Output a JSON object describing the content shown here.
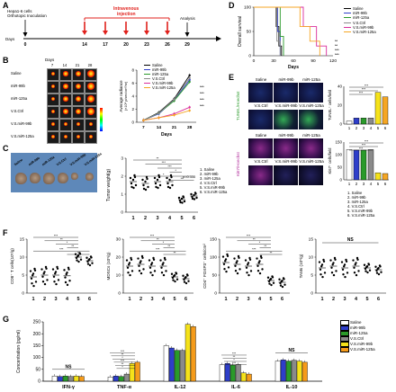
{
  "panels": {
    "A": "A",
    "B": "B",
    "C": "C",
    "D": "D",
    "E": "E",
    "F": "F",
    "G": "G"
  },
  "panelA": {
    "start_label": "Hepa1-6 cells\nOrthotopic Inoculation",
    "start_label_line1": "Hepa1-6 cells",
    "start_label_line2": "Orthotopic Inoculation",
    "injection_label_line1": "Intravenous",
    "injection_label_line2": "injection",
    "end_label": "Analysis",
    "days_label": "Days",
    "day_ticks": [
      "0",
      "14",
      "17",
      "20",
      "23",
      "26",
      "29"
    ],
    "arrow_color": "#e0211c"
  },
  "panelB": {
    "days_header": "Days",
    "day_cols": [
      "7",
      "14",
      "21",
      "28"
    ],
    "row_labels": [
      "Saline",
      "miR-99b",
      "miR-125a",
      "V.S.Ctrl",
      "V.S.miR-99b",
      "V.S.miR-125a"
    ],
    "legend_names": [
      "Saline",
      "miR-99b",
      "miR-125a",
      "V.S.Ctrl",
      "V.S.miR-99b",
      "V.S.miR-125a"
    ],
    "ylabel": "Average radiance",
    "ylabel2": "(×10⁶ p/sec/cm²/sr)",
    "yticks": [
      "0",
      "2",
      "4",
      "6",
      "8"
    ],
    "xlabel": "Days",
    "xticks": [
      "7",
      "14",
      "21",
      "28"
    ],
    "sig": [
      "***",
      "***",
      "***",
      "***"
    ]
  },
  "panelC": {
    "legend": [
      "1. Saline",
      "2. miR-99b",
      "3. miR-125a",
      "4. V.S.Ctrl",
      "5. V.S.miR-99b",
      "6. V.S.miR-125a"
    ],
    "tumor_labels": [
      "Saline",
      "miR-99b",
      "miR-125a",
      "V.S.Ctrl",
      "V.S.miR-99b",
      "V.S.miR-125a"
    ],
    "ylabel": "Tumor weight(g)",
    "yticks": [
      "0",
      "1",
      "2",
      "3"
    ],
    "xticks": [
      "1",
      "2",
      "3",
      "4",
      "5",
      "6"
    ],
    "pval": "p=0.110",
    "sig": [
      "**",
      "***",
      "***",
      "*",
      "*",
      "**"
    ]
  },
  "panelD": {
    "ylabel": "Overall survival",
    "xlabel": "Days",
    "yticks": [
      "0",
      "50",
      "100"
    ],
    "xticks": [
      "0",
      "30",
      "60",
      "90",
      "120"
    ],
    "legend": [
      "Saline",
      "miR-99b",
      "miR-125a",
      "V.S.Ctrl",
      "V.S.miR-99b",
      "V.S.miR-125a"
    ],
    "sig": [
      "**",
      "**",
      "***",
      "***"
    ]
  },
  "panelE": {
    "col_headers": [
      "Saline",
      "miR-99b",
      "miR-125a"
    ],
    "row_headers": [
      "V.S.Ctrl",
      "V.S.miR-99b",
      "V.S.miR-125a"
    ],
    "side_label_top": "TUNEL/Hoechst",
    "side_label_bottom": "Ki67/Hoechst",
    "top_ylabel": "TUNEL⁺ cells/field",
    "bottom_ylabel": "Ki67⁺ cells/field",
    "top_yticks": [
      "0",
      "20",
      "40"
    ],
    "bottom_yticks": [
      "0",
      "50",
      "100",
      "150"
    ],
    "xticks": [
      "1",
      "2",
      "3",
      "4",
      "5",
      "6"
    ],
    "legend": [
      "1. Saline",
      "2. miR-99b",
      "3. miR-125a",
      "4. V.S.Ctrl",
      "5. V.S.miR-99b",
      "6. V.S.miR-125a"
    ],
    "sig": [
      "***",
      "***",
      "***"
    ]
  },
  "panelF": {
    "plots": [
      {
        "ylabel": "CD8⁺ T cells(10⁵/g)",
        "yticks": [
          "0",
          "5",
          "10",
          "15"
        ]
      },
      {
        "ylabel": "MDSCs (10⁵/g)",
        "yticks": [
          "0",
          "10",
          "20",
          "30"
        ]
      },
      {
        "ylabel": "CD4⁺ FOXP3⁺ cells/cm²",
        "yticks": [
          "0",
          "50",
          "100",
          "150"
        ]
      },
      {
        "ylabel": "TAMs (10⁵/g)",
        "yticks": [
          "0",
          "5",
          "10",
          "15"
        ],
        "ns": "NS"
      }
    ],
    "xticks": [
      "1",
      "2",
      "3",
      "4",
      "5",
      "6"
    ],
    "sig": [
      "***",
      "**",
      "*",
      "**"
    ]
  },
  "panelG": {
    "ylabel": "Concentration (pg/ml)",
    "yticks": [
      "0",
      "50",
      "100",
      "150",
      "200",
      "250"
    ],
    "groups": [
      "IFN-γ",
      "TNF-α",
      "IL-12",
      "IL-6",
      "IL-10"
    ],
    "ns": "NS",
    "legend": [
      "Saline",
      "miR-99b",
      "miR-125a",
      "V.S.Ctrl",
      "V.S.miR-99b",
      "V.S.miR-125a"
    ],
    "colors": [
      "#ffffff",
      "#2e3ec9",
      "#2a9a2a",
      "#8a8a8a",
      "#f5e21a",
      "#f59b1a"
    ]
  },
  "colors": {
    "saline": "#000000",
    "mir99b": "#2e3ec9",
    "mir125a": "#2a9a2a",
    "vsctrl": "#8a8a8a",
    "vsmir99b": "#d92e9b",
    "vsmir125a": "#f5a623",
    "red": "#e0211c"
  },
  "chart_data": [
    {
      "type": "line",
      "title": "",
      "xlabel": "Days",
      "ylabel": "Average radiance",
      "x": [
        7,
        14,
        21,
        28
      ],
      "series": [
        {
          "name": "Saline",
          "values": [
            0.3,
            1.5,
            3.6,
            7.2
          ]
        },
        {
          "name": "miR-99b",
          "values": [
            0.3,
            1.3,
            3.4,
            6.5
          ]
        },
        {
          "name": "miR-125a",
          "values": [
            0.3,
            1.4,
            3.3,
            6.2
          ]
        },
        {
          "name": "V.S.Ctrl",
          "values": [
            0.3,
            1.4,
            3.5,
            6.8
          ]
        },
        {
          "name": "V.S.miR-99b",
          "values": [
            0.3,
            0.7,
            1.3,
            2.3
          ]
        },
        {
          "name": "V.S.miR-125a",
          "values": [
            0.3,
            0.7,
            1.1,
            1.8
          ]
        }
      ],
      "ylim": [
        0,
        8
      ]
    },
    {
      "type": "scatter",
      "ylabel": "Tumor weight(g)",
      "categories": [
        "1",
        "2",
        "3",
        "4",
        "5",
        "6"
      ],
      "values": [
        1.7,
        1.6,
        1.7,
        1.7,
        0.7,
        0.9
      ],
      "ylim": [
        0,
        3
      ]
    },
    {
      "type": "line",
      "ylabel": "Overall survival",
      "xlabel": "Days",
      "ylim": [
        0,
        100
      ],
      "xlim": [
        0,
        120
      ],
      "series": [
        {
          "name": "Saline",
          "values": [
            [
              0,
              100
            ],
            [
              30,
              100
            ],
            [
              34,
              60
            ],
            [
              38,
              20
            ],
            [
              42,
              0
            ]
          ]
        },
        {
          "name": "miR-99b",
          "values": [
            [
              0,
              100
            ],
            [
              32,
              100
            ],
            [
              36,
              50
            ],
            [
              40,
              0
            ]
          ]
        },
        {
          "name": "miR-125a",
          "values": [
            [
              0,
              100
            ],
            [
              35,
              100
            ],
            [
              40,
              40
            ],
            [
              45,
              0
            ]
          ]
        },
        {
          "name": "V.S.Ctrl",
          "values": [
            [
              0,
              100
            ],
            [
              30,
              100
            ],
            [
              35,
              30
            ],
            [
              40,
              0
            ]
          ]
        },
        {
          "name": "V.S.miR-99b",
          "values": [
            [
              0,
              100
            ],
            [
              60,
              100
            ],
            [
              75,
              60
            ],
            [
              95,
              20
            ],
            [
              110,
              0
            ]
          ]
        },
        {
          "name": "V.S.miR-125a",
          "values": [
            [
              0,
              100
            ],
            [
              55,
              100
            ],
            [
              70,
              60
            ],
            [
              85,
              30
            ],
            [
              100,
              0
            ]
          ]
        }
      ]
    },
    {
      "type": "bar",
      "ylabel": "TUNEL⁺ cells/field",
      "categories": [
        "1",
        "2",
        "3",
        "4",
        "5",
        "6"
      ],
      "values": [
        4,
        8,
        8,
        8,
        42,
        36
      ]
    },
    {
      "type": "bar",
      "ylabel": "Ki67⁺ cells/field",
      "categories": [
        "1",
        "2",
        "3",
        "4",
        "5",
        "6"
      ],
      "values": [
        120,
        118,
        118,
        120,
        28,
        25
      ]
    },
    {
      "type": "scatter",
      "ylabel": "CD8⁺ T cells(10⁵/g)",
      "categories": [
        "1",
        "2",
        "3",
        "4",
        "5",
        "6"
      ],
      "values": [
        4.5,
        5,
        5,
        4.8,
        10,
        9
      ]
    },
    {
      "type": "scatter",
      "ylabel": "MDSCs (10⁵/g)",
      "categories": [
        "1",
        "2",
        "3",
        "4",
        "5",
        "6"
      ],
      "values": [
        15,
        16,
        15,
        15,
        9,
        8
      ]
    },
    {
      "type": "scatter",
      "ylabel": "CD4⁺ FOXP3⁺ cells/cm²",
      "categories": [
        "1",
        "2",
        "3",
        "4",
        "5",
        "6"
      ],
      "values": [
        85,
        80,
        75,
        80,
        35,
        30
      ]
    },
    {
      "type": "scatter",
      "ylabel": "TAMs (10⁵/g)",
      "categories": [
        "1",
        "2",
        "3",
        "4",
        "5",
        "6"
      ],
      "values": [
        7,
        7.5,
        7,
        7.5,
        7,
        6.5
      ]
    },
    {
      "type": "bar",
      "ylabel": "Concentration (pg/ml)",
      "categories": [
        "IFN-γ",
        "TNF-α",
        "IL-12",
        "IL-6",
        "IL-10"
      ],
      "series": [
        {
          "name": "Saline",
          "values": [
            22,
            18,
            150,
            70,
            85
          ]
        },
        {
          "name": "miR-99b",
          "values": [
            20,
            22,
            140,
            75,
            90
          ]
        },
        {
          "name": "miR-125a",
          "values": [
            22,
            20,
            130,
            68,
            85
          ]
        },
        {
          "name": "V.S.Ctrl",
          "values": [
            20,
            30,
            130,
            70,
            88
          ]
        },
        {
          "name": "V.S.miR-99b",
          "values": [
            22,
            75,
            240,
            35,
            85
          ]
        },
        {
          "name": "V.S.miR-125a",
          "values": [
            20,
            80,
            230,
            30,
            80
          ]
        }
      ],
      "ylim": [
        0,
        250
      ]
    }
  ]
}
